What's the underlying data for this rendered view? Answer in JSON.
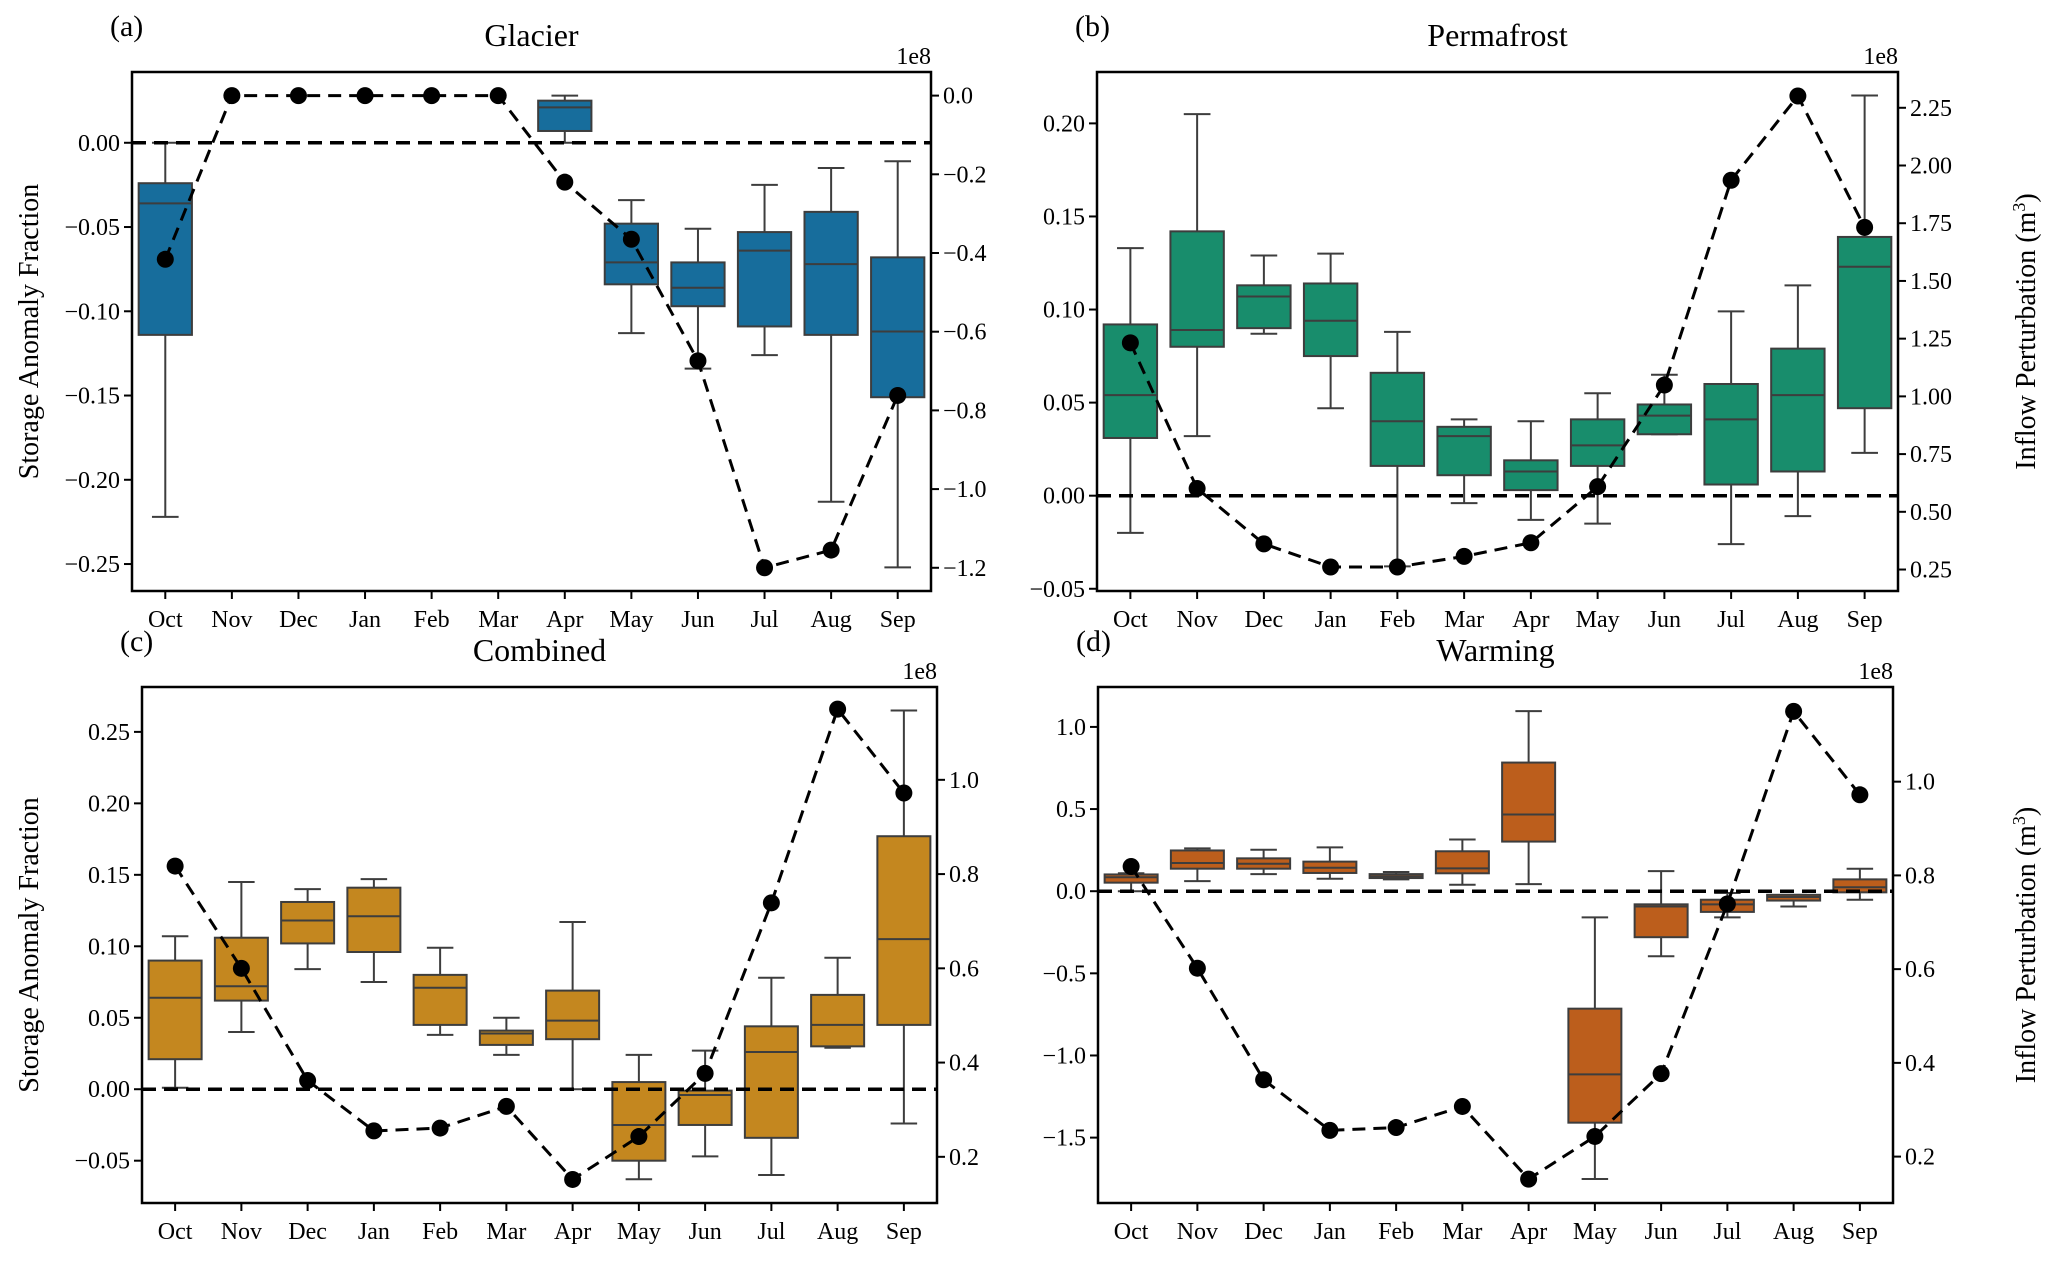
{
  "figure": {
    "left_ylabel": "Storage Anomaly Fraction",
    "right_ylabel": "Inflow Perturbation (m",
    "right_ylabel_sup": "3",
    "right_ylabel_close": ")",
    "zero_line_style": "dashed black"
  },
  "chart_data": [
    {
      "type": "box+line",
      "panel": "(a)",
      "title": "Glacier",
      "color": "#176d9c",
      "categories": [
        "Oct",
        "Nov",
        "Dec",
        "Jan",
        "Feb",
        "Mar",
        "Apr",
        "May",
        "Jun",
        "Jul",
        "Aug",
        "Sep"
      ],
      "left_axis": {
        "label": "Storage Anomaly Fraction",
        "ylim": [
          -0.266,
          0.042
        ],
        "ticks": [
          0.0,
          -0.05,
          -0.1,
          -0.15,
          -0.2,
          -0.25
        ],
        "tick_labels": [
          "0.00",
          "−0.05",
          "−0.10",
          "−0.15",
          "−0.20",
          "−0.25"
        ]
      },
      "right_axis": {
        "label": "",
        "offset_text": "1e8",
        "ylim": [
          -1.259,
          0.06
        ],
        "ticks": [
          0.0,
          -0.2,
          -0.4,
          -0.6,
          -0.8,
          -1.0,
          -1.2
        ],
        "tick_labels": [
          "0.0",
          "−0.2",
          "−0.4",
          "−0.6",
          "−0.8",
          "−1.0",
          "−1.2"
        ]
      },
      "boxes": [
        {
          "whislo": -0.222,
          "q1": -0.114,
          "med": -0.036,
          "q3": -0.024,
          "whishi": 0.0
        },
        null,
        null,
        null,
        null,
        null,
        {
          "whislo": 0.0,
          "q1": 0.007,
          "med": 0.021,
          "q3": 0.025,
          "whishi": 0.028
        },
        {
          "whislo": -0.113,
          "q1": -0.084,
          "med": -0.071,
          "q3": -0.048,
          "whishi": -0.034
        },
        {
          "whislo": -0.134,
          "q1": -0.097,
          "med": -0.086,
          "q3": -0.071,
          "whishi": -0.051
        },
        {
          "whislo": -0.126,
          "q1": -0.109,
          "med": -0.064,
          "q3": -0.053,
          "whishi": -0.025
        },
        {
          "whislo": -0.213,
          "q1": -0.114,
          "med": -0.072,
          "q3": -0.041,
          "whishi": -0.015
        },
        {
          "whislo": -0.252,
          "q1": -0.151,
          "med": -0.112,
          "q3": -0.068,
          "whishi": -0.011
        }
      ],
      "line_values_e8": [
        -0.416,
        0.0,
        0.0,
        0.0,
        0.0,
        0.0,
        -0.22,
        -0.365,
        -0.674,
        -1.2,
        -1.155,
        -0.762
      ],
      "show_right_label": false,
      "show_left_label": true
    },
    {
      "type": "box+line",
      "panel": "(b)",
      "title": "Permafrost",
      "color": "#188d6c",
      "categories": [
        "Oct",
        "Nov",
        "Dec",
        "Jan",
        "Feb",
        "Mar",
        "Apr",
        "May",
        "Jun",
        "Jul",
        "Aug",
        "Sep"
      ],
      "left_axis": {
        "label": "",
        "ylim": [
          -0.0512,
          0.2276
        ],
        "ticks": [
          0.2,
          0.15,
          0.1,
          0.05,
          0.0,
          -0.05
        ],
        "tick_labels": [
          "0.20",
          "0.15",
          "0.10",
          "0.05",
          "0.00",
          "−0.05"
        ]
      },
      "right_axis": {
        "label": "Inflow Perturbation (m3)",
        "offset_text": "1e8",
        "ylim": [
          0.157,
          2.405
        ],
        "ticks": [
          2.25,
          2.0,
          1.75,
          1.5,
          1.25,
          1.0,
          0.75,
          0.5,
          0.25
        ],
        "tick_labels": [
          "2.25",
          "2.00",
          "1.75",
          "1.50",
          "1.25",
          "1.00",
          "0.75",
          "0.50",
          "0.25"
        ]
      },
      "boxes": [
        {
          "whislo": -0.02,
          "q1": 0.031,
          "med": 0.054,
          "q3": 0.092,
          "whishi": 0.133
        },
        {
          "whislo": 0.032,
          "q1": 0.08,
          "med": 0.089,
          "q3": 0.142,
          "whishi": 0.205
        },
        {
          "whislo": 0.087,
          "q1": 0.09,
          "med": 0.107,
          "q3": 0.113,
          "whishi": 0.129
        },
        {
          "whislo": 0.047,
          "q1": 0.075,
          "med": 0.094,
          "q3": 0.114,
          "whishi": 0.13
        },
        {
          "whislo": -0.038,
          "q1": 0.016,
          "med": 0.04,
          "q3": 0.066,
          "whishi": 0.088
        },
        {
          "whislo": -0.004,
          "q1": 0.011,
          "med": 0.032,
          "q3": 0.037,
          "whishi": 0.041
        },
        {
          "whislo": -0.013,
          "q1": 0.003,
          "med": 0.013,
          "q3": 0.019,
          "whishi": 0.04
        },
        {
          "whislo": -0.015,
          "q1": 0.016,
          "med": 0.027,
          "q3": 0.041,
          "whishi": 0.055
        },
        {
          "whislo": 0.033,
          "q1": 0.033,
          "med": 0.043,
          "q3": 0.049,
          "whishi": 0.065
        },
        {
          "whislo": -0.026,
          "q1": 0.006,
          "med": 0.041,
          "q3": 0.06,
          "whishi": 0.099
        },
        {
          "whislo": -0.011,
          "q1": 0.013,
          "med": 0.054,
          "q3": 0.079,
          "whishi": 0.113
        },
        {
          "whislo": 0.023,
          "q1": 0.047,
          "med": 0.123,
          "q3": 0.139,
          "whishi": 0.215
        }
      ],
      "line_values_e8": [
        1.232,
        0.601,
        0.361,
        0.261,
        0.261,
        0.307,
        0.366,
        0.609,
        1.049,
        1.936,
        2.301,
        1.732
      ],
      "show_right_label": true,
      "show_left_label": false
    },
    {
      "type": "box+line",
      "panel": "(c)",
      "title": "Combined",
      "color": "#c4871f",
      "categories": [
        "Oct",
        "Nov",
        "Dec",
        "Jan",
        "Feb",
        "Mar",
        "Apr",
        "May",
        "Jun",
        "Jul",
        "Aug",
        "Sep"
      ],
      "left_axis": {
        "label": "Storage Anomaly Fraction",
        "ylim": [
          -0.0796,
          0.2814
        ],
        "ticks": [
          0.25,
          0.2,
          0.15,
          0.1,
          0.05,
          0.0,
          -0.05
        ],
        "tick_labels": [
          "0.25",
          "0.20",
          "0.15",
          "0.10",
          "0.05",
          "0.00",
          "−0.05"
        ]
      },
      "right_axis": {
        "label": "",
        "offset_text": "1e8",
        "ylim": [
          0.102,
          1.197
        ],
        "ticks": [
          1.0,
          0.8,
          0.6,
          0.4,
          0.2
        ],
        "tick_labels": [
          "1.0",
          "0.8",
          "0.6",
          "0.4",
          "0.2"
        ]
      },
      "boxes": [
        {
          "whislo": 0.001,
          "q1": 0.021,
          "med": 0.064,
          "q3": 0.09,
          "whishi": 0.107
        },
        {
          "whislo": 0.04,
          "q1": 0.062,
          "med": 0.072,
          "q3": 0.106,
          "whishi": 0.145
        },
        {
          "whislo": 0.084,
          "q1": 0.102,
          "med": 0.118,
          "q3": 0.131,
          "whishi": 0.14
        },
        {
          "whislo": 0.075,
          "q1": 0.096,
          "med": 0.121,
          "q3": 0.141,
          "whishi": 0.147
        },
        {
          "whislo": 0.038,
          "q1": 0.045,
          "med": 0.071,
          "q3": 0.08,
          "whishi": 0.099
        },
        {
          "whislo": 0.024,
          "q1": 0.031,
          "med": 0.039,
          "q3": 0.041,
          "whishi": 0.05
        },
        {
          "whislo": 0.0,
          "q1": 0.035,
          "med": 0.048,
          "q3": 0.069,
          "whishi": 0.117
        },
        {
          "whislo": -0.063,
          "q1": -0.05,
          "med": -0.025,
          "q3": 0.005,
          "whishi": 0.024
        },
        {
          "whislo": -0.047,
          "q1": -0.025,
          "med": -0.004,
          "q3": -0.001,
          "whishi": 0.027
        },
        {
          "whislo": -0.06,
          "q1": -0.034,
          "med": 0.026,
          "q3": 0.044,
          "whishi": 0.078
        },
        {
          "whislo": 0.029,
          "q1": 0.03,
          "med": 0.045,
          "q3": 0.066,
          "whishi": 0.092
        },
        {
          "whislo": -0.024,
          "q1": 0.045,
          "med": 0.105,
          "q3": 0.177,
          "whishi": 0.265
        }
      ],
      "line_values_e8": [
        0.817,
        0.6,
        0.362,
        0.255,
        0.261,
        0.307,
        0.152,
        0.243,
        0.377,
        0.739,
        1.15,
        0.972
      ],
      "show_right_label": false,
      "show_left_label": true
    },
    {
      "type": "box+line",
      "panel": "(d)",
      "title": "Warming",
      "color": "#bc5e1c",
      "categories": [
        "Oct",
        "Nov",
        "Dec",
        "Jan",
        "Feb",
        "Mar",
        "Apr",
        "May",
        "Jun",
        "Jul",
        "Aug",
        "Sep"
      ],
      "left_axis": {
        "label": "",
        "ylim": [
          -1.898,
          1.243
        ],
        "ticks": [
          1.0,
          0.5,
          0.0,
          -0.5,
          -1.0,
          -1.5
        ],
        "tick_labels": [
          "1.0",
          "0.5",
          "0.0",
          "−0.5",
          "−1.0",
          "−1.5"
        ]
      },
      "right_axis": {
        "label": "Inflow Perturbation (m3)",
        "offset_text": "1e8",
        "ylim": [
          0.101,
          1.202
        ],
        "ticks": [
          1.0,
          0.8,
          0.6,
          0.4,
          0.2
        ],
        "tick_labels": [
          "1.0",
          "0.8",
          "0.6",
          "0.4",
          "0.2"
        ]
      },
      "boxes": [
        {
          "whislo": 0.0,
          "q1": 0.052,
          "med": 0.085,
          "q3": 0.102,
          "whishi": 0.109
        },
        {
          "whislo": 0.061,
          "q1": 0.137,
          "med": 0.172,
          "q3": 0.248,
          "whishi": 0.261
        },
        {
          "whislo": 0.104,
          "q1": 0.137,
          "med": 0.167,
          "q3": 0.2,
          "whishi": 0.252
        },
        {
          "whislo": 0.076,
          "q1": 0.111,
          "med": 0.143,
          "q3": 0.18,
          "whishi": 0.267
        },
        {
          "whislo": 0.072,
          "q1": 0.08,
          "med": 0.091,
          "q3": 0.104,
          "whishi": 0.117
        },
        {
          "whislo": 0.039,
          "q1": 0.109,
          "med": 0.139,
          "q3": 0.243,
          "whishi": 0.315
        },
        {
          "whislo": 0.043,
          "q1": 0.302,
          "med": 0.467,
          "q3": 0.783,
          "whishi": 1.096
        },
        {
          "whislo": -1.752,
          "q1": -1.409,
          "med": -1.115,
          "q3": -0.715,
          "whishi": -0.159
        },
        {
          "whislo": -0.396,
          "q1": -0.28,
          "med": -0.093,
          "q3": -0.08,
          "whishi": 0.122
        },
        {
          "whislo": -0.159,
          "q1": -0.126,
          "med": -0.08,
          "q3": -0.052,
          "whishi": -0.011
        },
        {
          "whislo": -0.093,
          "q1": -0.057,
          "med": -0.035,
          "q3": -0.022,
          "whishi": -0.022
        },
        {
          "whislo": -0.052,
          "q1": -0.007,
          "med": 0.024,
          "q3": 0.072,
          "whishi": 0.137
        }
      ],
      "line_values_e8": [
        0.819,
        0.602,
        0.364,
        0.256,
        0.262,
        0.307,
        0.152,
        0.243,
        0.377,
        0.739,
        1.15,
        0.972
      ],
      "show_right_label": true,
      "show_left_label": false
    }
  ]
}
